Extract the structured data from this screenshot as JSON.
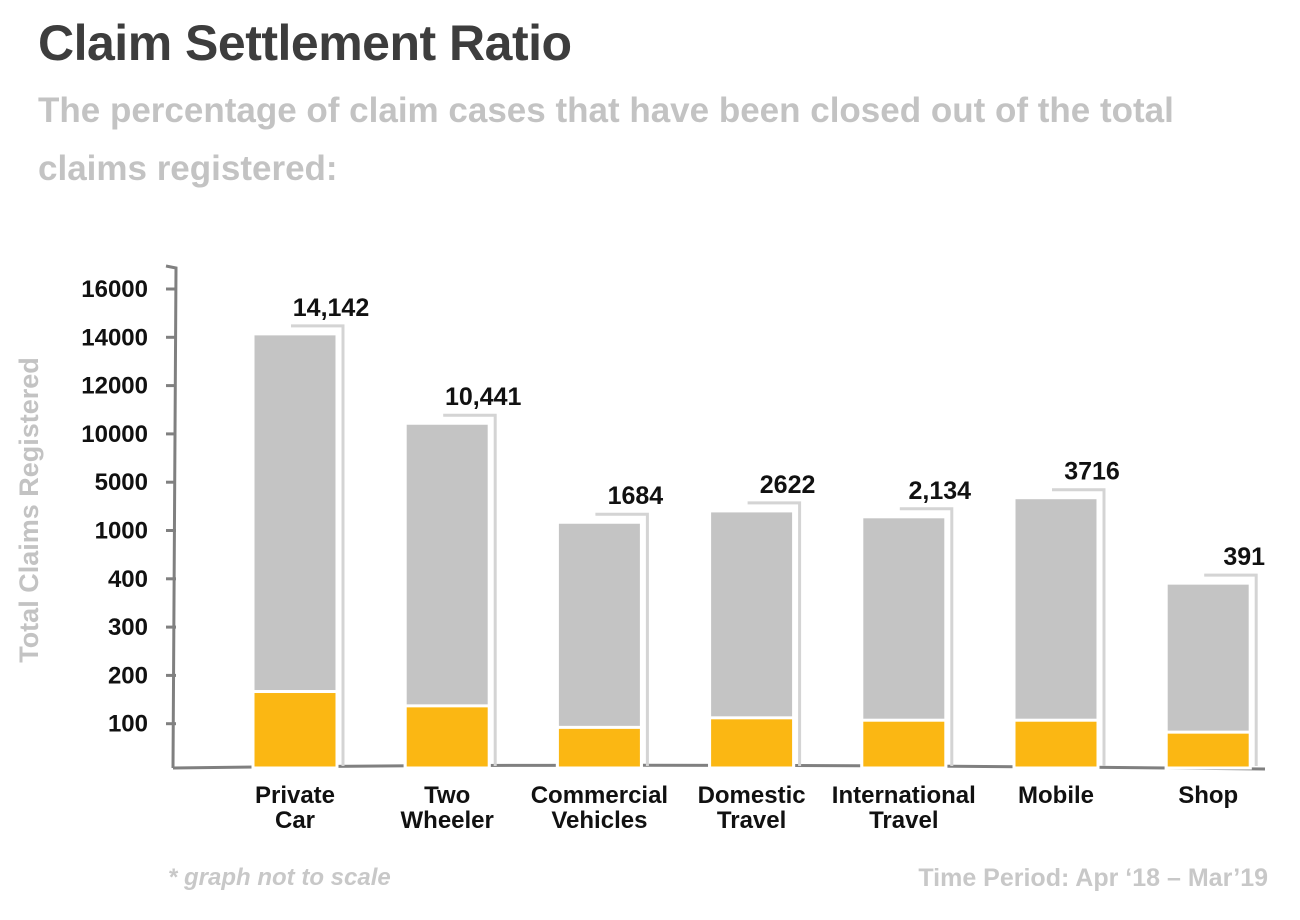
{
  "title": "Claim Settlement Ratio",
  "subtitle": "The percentage of claim cases that have been closed out of the total claims registered:",
  "footnote": "* graph not to scale",
  "time_period": "Time Period: Apr ‘18 – Mar’19",
  "colors": {
    "total_bar": "#c4c4c4",
    "settled_bar": "#fbb713",
    "axis": "#808080",
    "callout": "#d4d4d4"
  },
  "chart_data": {
    "type": "bar",
    "title": "Claim Settlement Ratio",
    "ylabel": "Total Claims Registered",
    "xlabel": "",
    "scale_note": "not to scale",
    "yticks": [
      "16000",
      "14000",
      "12000",
      "10000",
      "5000",
      "1000",
      "400",
      "300",
      "200",
      "100"
    ],
    "categories": [
      [
        "Private",
        "Car"
      ],
      [
        "Two",
        "Wheeler"
      ],
      [
        "Commercial",
        "Vehicles"
      ],
      [
        "Domestic",
        "Travel"
      ],
      [
        "International",
        "Travel"
      ],
      [
        "Mobile"
      ],
      [
        "Shop"
      ]
    ],
    "total_labels": [
      "14,142",
      "10,441",
      "1684",
      "2622",
      "2,134",
      "3716",
      "391"
    ],
    "series": [
      {
        "name": "",
        "values": [
          14142,
          10441,
          1684,
          2622,
          2134,
          3716,
          391
        ]
      }
    ],
    "grid": false
  }
}
